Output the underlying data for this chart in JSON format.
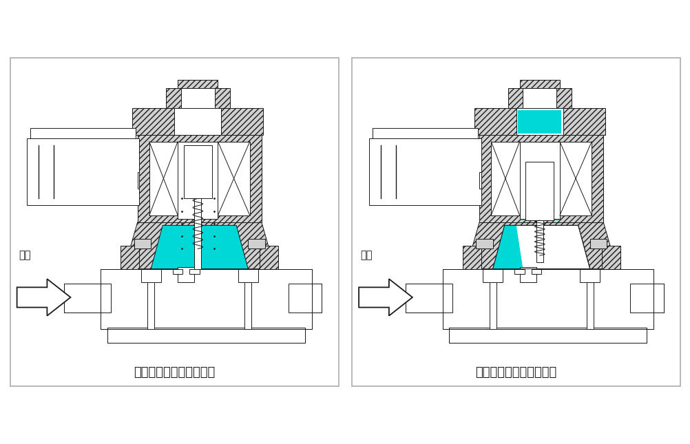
{
  "title_left": "线圈断电时：电磁阀开启",
  "title_right": "线圈通电时：电磁阀关闭",
  "fluid_label": "流体",
  "cyan": "#00D8D8",
  "black": "#1A1A1A",
  "white": "#FFFFFF",
  "lgray": "#D0D0D0",
  "hgray": "#B0B0B0",
  "bg": "#FFFFFF",
  "font_size_title": 13,
  "font_size_label": 10.5
}
